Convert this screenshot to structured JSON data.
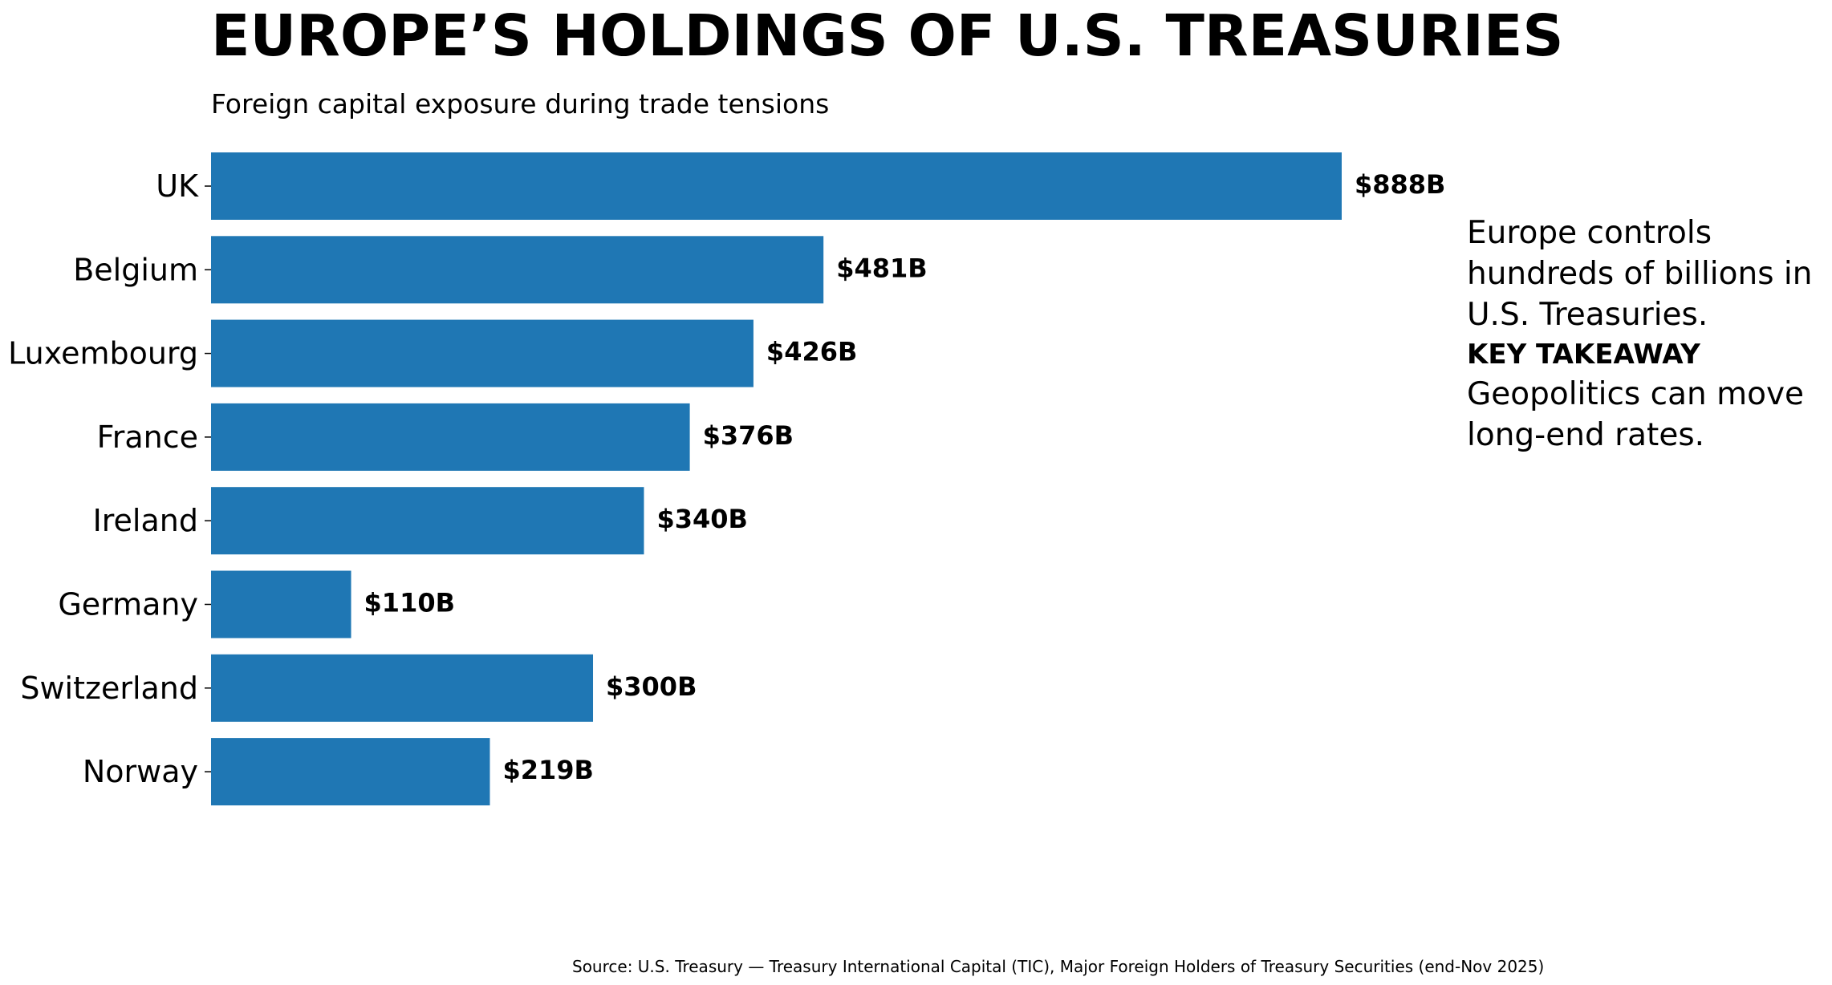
{
  "header": {
    "title": "EUROPE’S HOLDINGS OF U.S. TREASURIES",
    "subtitle": "Foreign capital exposure during trade tensions"
  },
  "annotation": {
    "body": "Europe controls hundreds of billions in U.S. Treasuries.",
    "takeaway_heading": "KEY TAKEAWAY",
    "takeaway_body": "Geopolitics can move long-end rates."
  },
  "footer": {
    "source": "Source: U.S. Treasury — Treasury International Capital (TIC), Major Foreign Holders of Treasury Securities (end-Nov 2025)"
  },
  "colors": {
    "bar": "#1f77b4",
    "text": "#000000",
    "background": "#ffffff"
  },
  "chart_data": {
    "type": "bar",
    "orientation": "horizontal",
    "title": "EUROPE’S HOLDINGS OF U.S. TREASURIES",
    "subtitle": "Foreign capital exposure during trade tensions",
    "categories": [
      "UK",
      "Belgium",
      "Luxembourg",
      "France",
      "Ireland",
      "Germany",
      "Switzerland",
      "Norway"
    ],
    "values": [
      888,
      481,
      426,
      376,
      340,
      110,
      300,
      219
    ],
    "value_labels": [
      "$888B",
      "$481B",
      "$426B",
      "$376B",
      "$340B",
      "$110B",
      "$300B",
      "$219B"
    ],
    "unit": "USD billions",
    "xlabel": "",
    "ylabel": "",
    "xlim": [
      0,
      1000
    ],
    "grid": false,
    "legend": "none"
  }
}
